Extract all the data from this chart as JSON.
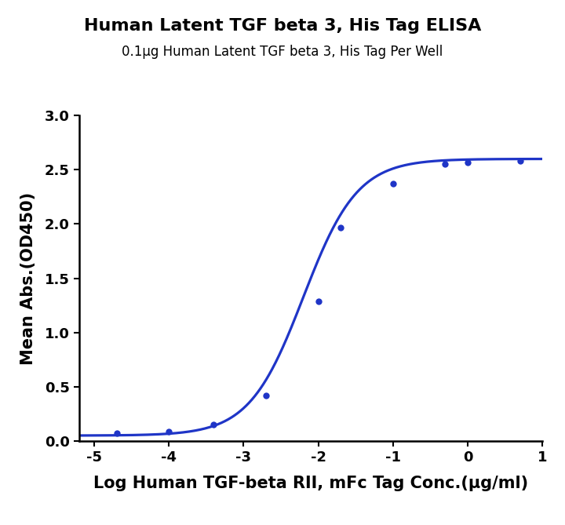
{
  "title": "Human Latent TGF beta 3, His Tag ELISA",
  "subtitle": "0.1μg Human Latent TGF beta 3, His Tag Per Well",
  "xlabel": "Log Human TGF-beta RII, mFc Tag Conc.(μg/ml)",
  "ylabel": "Mean Abs.(OD450)",
  "x_data": [
    -4.699,
    -4.0,
    -3.398,
    -2.699,
    -2.0,
    -1.699,
    -1.0,
    -0.301,
    0.0,
    0.699
  ],
  "y_data": [
    0.075,
    0.09,
    0.155,
    0.42,
    1.29,
    1.97,
    2.37,
    2.555,
    2.57,
    2.58
  ],
  "xlim": [
    -5.2,
    1.0
  ],
  "ylim": [
    0.0,
    3.0
  ],
  "xticks": [
    -5,
    -4,
    -3,
    -2,
    -1,
    0,
    1
  ],
  "yticks": [
    0.0,
    0.5,
    1.0,
    1.5,
    2.0,
    2.5,
    3.0
  ],
  "line_color": "#1f35c7",
  "marker_color": "#1f35c7",
  "marker_size": 6,
  "line_width": 2.3,
  "title_fontsize": 16,
  "subtitle_fontsize": 12,
  "label_fontsize": 15,
  "tick_fontsize": 13,
  "background_color": "#ffffff",
  "plot_bg_color": "#ffffff"
}
